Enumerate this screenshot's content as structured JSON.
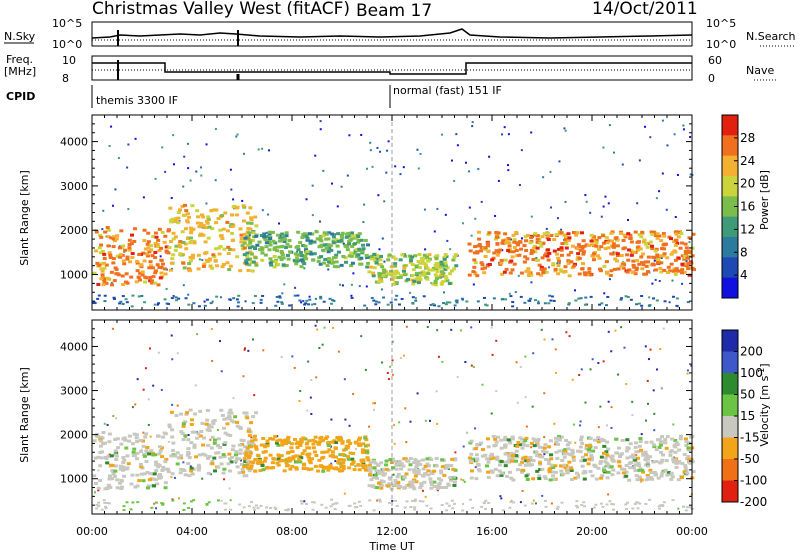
{
  "header": {
    "title": "Christmas Valley West (fitACF)",
    "beam": "Beam 17",
    "date": "14/Oct/2011"
  },
  "params": {
    "nsky_label": "N.Sky",
    "nsearch_label": "N.Search",
    "freq_label_1": "Freq.",
    "freq_label_2": "[MHz]",
    "nave_label": "Nave",
    "cpid_label": "CPID",
    "nsky_ticks": [
      "10^5",
      "10^0"
    ],
    "nsearch_ticks": [
      "10^5",
      "10^0"
    ],
    "freq_ticks": [
      "10",
      "8"
    ],
    "nave_ticks": [
      "60",
      "0"
    ],
    "cpid_segments": [
      "themis 3300 IF",
      "normal (fast) 151 IF"
    ]
  },
  "chart_data": [
    {
      "type": "heatmap",
      "quantity": "Power",
      "ylabel": "Slant Range [km]",
      "ylim": [
        200,
        4600
      ],
      "yticks": [
        1000,
        2000,
        3000,
        4000
      ],
      "colorbar": {
        "label": "Power [dB]",
        "range": [
          0,
          32
        ],
        "ticks": [
          4,
          8,
          12,
          16,
          20,
          24,
          28
        ],
        "colors": [
          "#1010e0",
          "#1e48b4",
          "#2c7aa0",
          "#3f9a78",
          "#7bbd4c",
          "#cbd43a",
          "#f4b030",
          "#f07020",
          "#e22010"
        ]
      },
      "features": [
        {
          "t": [
            0.0,
            3.0
          ],
          "range": [
            800,
            2100
          ],
          "power": 28
        },
        {
          "t": [
            3.0,
            6.5
          ],
          "range": [
            1100,
            2600
          ],
          "power": 24
        },
        {
          "t": [
            6.0,
            11.0
          ],
          "range": [
            1200,
            2000
          ],
          "power": 14
        },
        {
          "t": [
            11.0,
            14.5
          ],
          "range": [
            800,
            1500
          ],
          "power": 20
        },
        {
          "t": [
            15.0,
            24.0
          ],
          "range": [
            1000,
            2000
          ],
          "power": 28
        }
      ]
    },
    {
      "type": "heatmap",
      "quantity": "Velocity",
      "xlabel": "Time UT",
      "ylabel": "Slant Range [km]",
      "ylim": [
        200,
        4600
      ],
      "yticks": [
        1000,
        2000,
        3000,
        4000
      ],
      "xticks": [
        "00:00",
        "04:00",
        "08:00",
        "12:00",
        "16:00",
        "20:00",
        "00:00"
      ],
      "colorbar": {
        "label": "Velocity [m s^-1]",
        "ticks": [
          "200",
          "100",
          "50",
          "15",
          "-15",
          "-50",
          "-100",
          "-200"
        ],
        "colors": [
          "#1e2aa8",
          "#3d58c8",
          "#2e8a2e",
          "#6cc444",
          "#c8c8c0",
          "#f2a518",
          "#f07018",
          "#e02010"
        ]
      },
      "features": [
        {
          "t": [
            0.0,
            3.0
          ],
          "range": [
            800,
            2100
          ],
          "velocity": 0
        },
        {
          "t": [
            3.0,
            6.5
          ],
          "range": [
            1100,
            2600
          ],
          "velocity": 0
        },
        {
          "t": [
            6.0,
            11.0
          ],
          "range": [
            1200,
            2000
          ],
          "velocity": -40
        },
        {
          "t": [
            11.0,
            14.5
          ],
          "range": [
            800,
            1500
          ],
          "velocity": 0
        },
        {
          "t": [
            15.0,
            24.0
          ],
          "range": [
            1000,
            2000
          ],
          "velocity": 0
        }
      ]
    }
  ]
}
